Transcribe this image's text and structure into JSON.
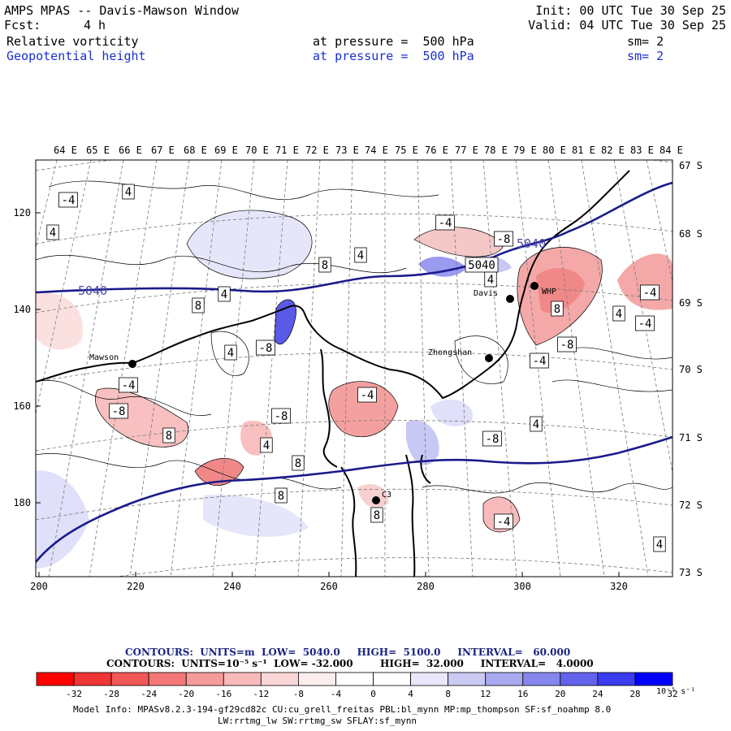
{
  "header": {
    "title": "AMPS MPAS -- Davis-Mawson Window",
    "init": "Init: 00 UTC Tue 30 Sep 25",
    "fcst_label": "Fcst:",
    "fcst_value": "4 h",
    "valid": "Valid: 04 UTC Tue 30 Sep 25",
    "fields": [
      {
        "name": "Relative vorticity",
        "pressure": "at pressure =  500 hPa",
        "sm": "sm= 2"
      },
      {
        "name": "Geopotential height",
        "pressure": "at pressure =  500 hPa",
        "sm": "sm= 2"
      }
    ]
  },
  "map": {
    "lon_labels": [
      "64 E",
      "65 E",
      "66 E",
      "67 E",
      "68 E",
      "69 E",
      "70 E",
      "71 E",
      "72 E",
      "73 E",
      "74 E",
      "75 E",
      "76 E",
      "77 E",
      "78 E",
      "79 E",
      "80 E",
      "81 E",
      "82 E",
      "83 E",
      "84 E"
    ],
    "lat_labels": [
      "67 S",
      "68 S",
      "69 S",
      "70 S",
      "71 S",
      "72 S",
      "73 S"
    ],
    "x_ticks": [
      "200",
      "220",
      "240",
      "260",
      "280",
      "300",
      "320"
    ],
    "y_ticks": [
      "120",
      "140",
      "160",
      "180"
    ],
    "stations": [
      {
        "name": "Mawson"
      },
      {
        "name": "Zhongshan"
      },
      {
        "name": "Davis"
      },
      {
        "name": "WHP"
      },
      {
        "name": "C3"
      }
    ],
    "height_labels": [
      "5040",
      "5040",
      "5040"
    ],
    "contour_labels": [
      "-4",
      "4",
      "4",
      "-4",
      "-8",
      "5040",
      "4",
      "8",
      "4",
      "8",
      "4",
      "-8",
      "4",
      "8",
      "4",
      "-4",
      "-4",
      "-8",
      "-4",
      "-4",
      "-8",
      "-8",
      "-4",
      "8",
      "4",
      "8",
      "-8",
      "4",
      "8",
      "8",
      "-4",
      "4"
    ],
    "colors": {
      "height_contour": "#1a1a8c",
      "coast": "#000000"
    }
  },
  "footer": {
    "line1": "CONTOURS:  UNITS=m  LOW=  5040.0     HIGH=  5100.0     INTERVAL=   60.000",
    "line2": "CONTOURS:  UNITS=10⁻⁵ s⁻¹  LOW= -32.000        HIGH=  32.000     INTERVAL=   4.0000",
    "colorbar_labels": [
      "-32",
      "-28",
      "-24",
      "-20",
      "-16",
      "-12",
      "-8",
      "-4",
      "0",
      "4",
      "8",
      "12",
      "16",
      "20",
      "24",
      "28",
      "32"
    ],
    "colorbar_unit": "10⁻⁵ s⁻¹",
    "colorbar_colors": [
      "#ff0000",
      "#f03535",
      "#f25757",
      "#f47878",
      "#f69b9b",
      "#f8baba",
      "#fad7d7",
      "#fdeeee",
      "#ffffff",
      "#ffffff",
      "#e8e8fa",
      "#cacaf4",
      "#a9a9f0",
      "#8686ec",
      "#6262ea",
      "#3b3bef",
      "#0000ff"
    ],
    "model_info": "Model Info: MPASv8.2.3-194-gf29cd82c CU:cu_grell_freitas PBL:bl_mynn MP:mp_thompson SF:sf_noahmp 8.0",
    "model_info2": "LW:rrtmg_lw SW:rrtmg_sw SFLAY:sf_mynn"
  }
}
